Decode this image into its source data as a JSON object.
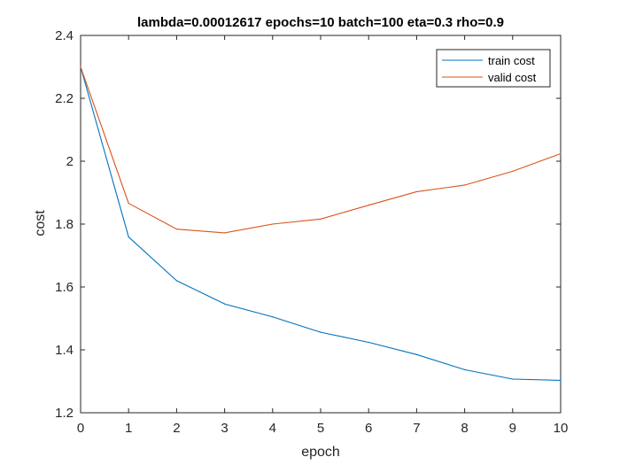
{
  "chart_data": {
    "type": "line",
    "title": "lambda=0.00012617 epochs=10 batch=100 eta=0.3 rho=0.9",
    "xlabel": "epoch",
    "ylabel": "cost",
    "xlim": [
      0,
      10
    ],
    "ylim": [
      1.2,
      2.4
    ],
    "xticks": [
      0,
      1,
      2,
      3,
      4,
      5,
      6,
      7,
      8,
      9,
      10
    ],
    "xtick_labels": [
      "0",
      "1",
      "2",
      "3",
      "4",
      "5",
      "6",
      "7",
      "8",
      "9",
      "10"
    ],
    "yticks": [
      1.2,
      1.4,
      1.6,
      1.8,
      2.0,
      2.2,
      2.4
    ],
    "ytick_labels": [
      "1.2",
      "1.4",
      "1.6",
      "1.8",
      "2",
      "2.2",
      "2.4"
    ],
    "grid": false,
    "legend": {
      "position": "top-right"
    },
    "x": [
      0,
      1,
      2,
      3,
      4,
      5,
      6,
      7,
      8,
      9,
      10
    ],
    "series": [
      {
        "name": "train cost",
        "color": "#0072BD",
        "values": [
          2.3,
          1.759,
          1.62,
          1.546,
          1.505,
          1.456,
          1.424,
          1.385,
          1.337,
          1.307,
          1.303
        ]
      },
      {
        "name": "valid cost",
        "color": "#D95319",
        "values": [
          2.3,
          1.866,
          1.784,
          1.772,
          1.8,
          1.816,
          1.86,
          1.903,
          1.924,
          1.968,
          2.024
        ]
      }
    ]
  }
}
